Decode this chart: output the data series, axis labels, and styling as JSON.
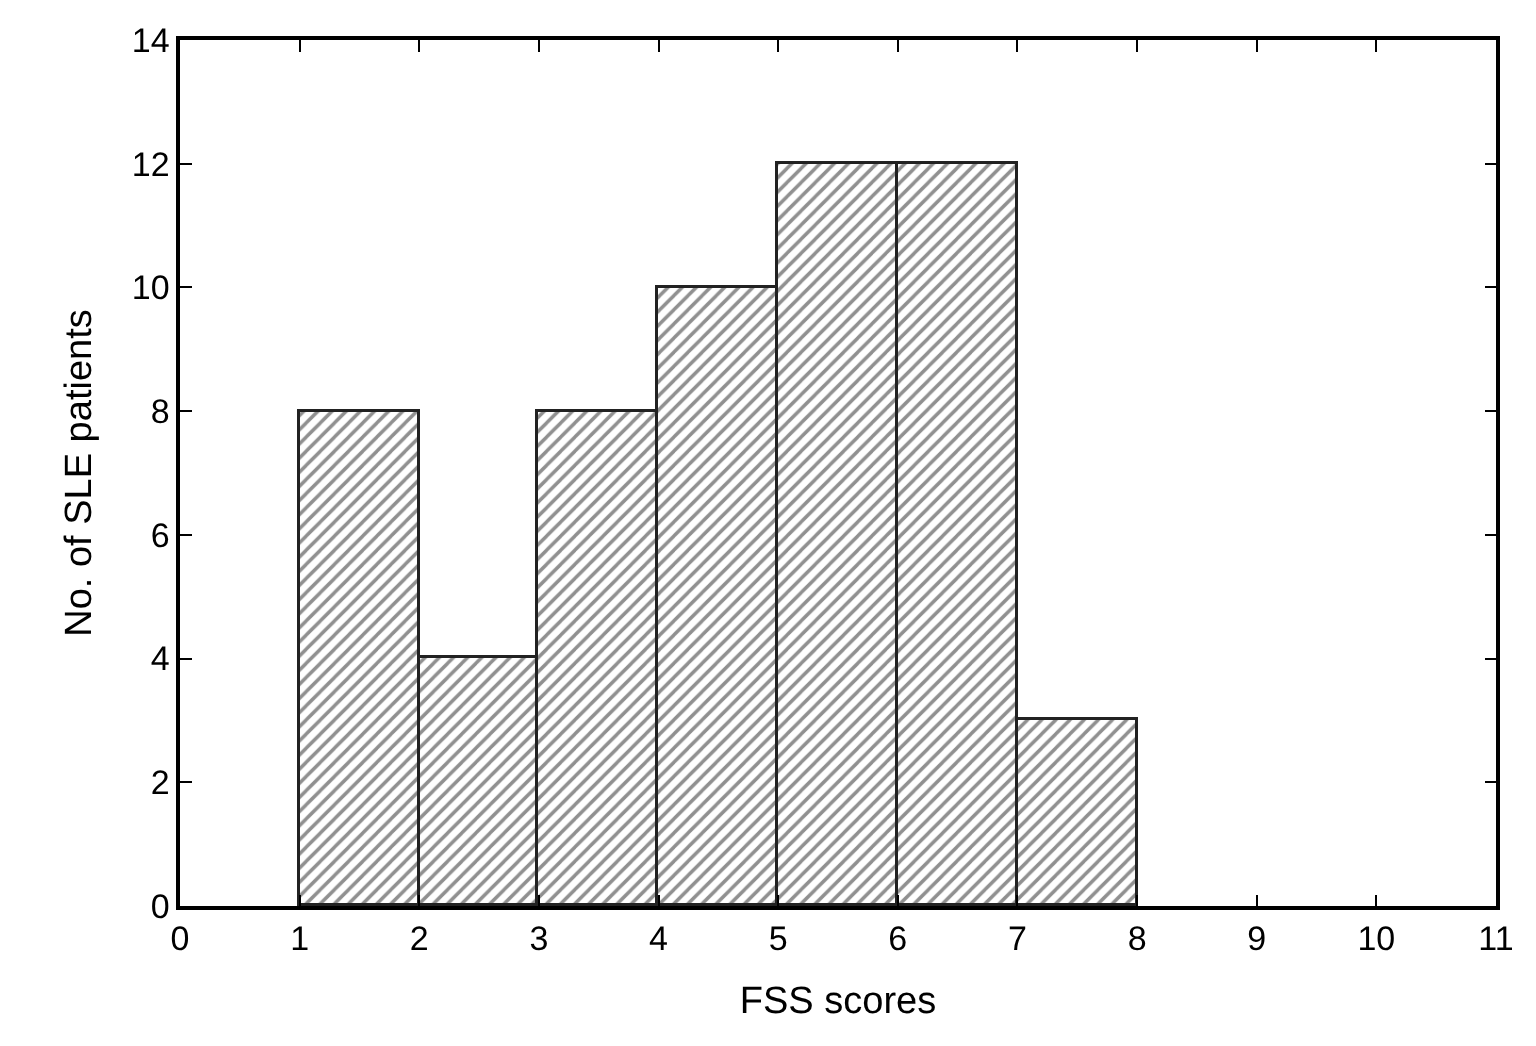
{
  "chart_data": {
    "type": "histogram",
    "xlabel": "FSS scores",
    "ylabel": "No. of SLE patients",
    "bins": [
      1,
      2,
      3,
      4,
      5,
      6,
      7,
      8
    ],
    "values": [
      8,
      4,
      8,
      10,
      12,
      12,
      3
    ],
    "color": "#222222",
    "xlim": [
      0,
      11
    ],
    "xticks": [
      0,
      1,
      2,
      3,
      4,
      5,
      6,
      7,
      8,
      9,
      10,
      11
    ],
    "ylim": [
      0,
      14
    ],
    "yticks": [
      0,
      2,
      4,
      6,
      8,
      10,
      12,
      14
    ]
  }
}
